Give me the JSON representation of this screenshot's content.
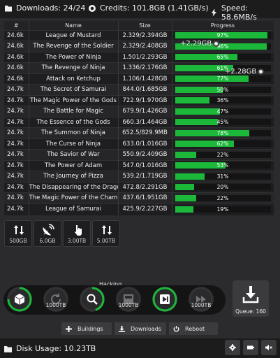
{
  "topbar": {
    "downloads": "Downloads: 24/24",
    "credits": "Credits: 101.8GB (1.41GB/s)",
    "speed": "Speed: 58.6MB/s"
  },
  "table": {
    "headers": [
      "#",
      "Name",
      "Size",
      "Progress"
    ],
    "rows": [
      {
        "id": "24.6k",
        "name": "League of Mustard",
        "size": "2.329/2.394GB",
        "progress": 97,
        "label": "97%"
      },
      {
        "id": "24.6k",
        "name": "The Revenge of the Soldier",
        "size": "2.329/2.408GB",
        "progress": 96,
        "label": "96%"
      },
      {
        "id": "24.6k",
        "name": "The Power of Ninja",
        "size": "1.501/2.293GB",
        "progress": 65,
        "label": "65%"
      },
      {
        "id": "24.6k",
        "name": "The Revenge of Ninja",
        "size": "1.336/2.176GB",
        "progress": 61,
        "label": "61%"
      },
      {
        "id": "24.6k",
        "name": "Attack on Ketchup",
        "size": "1.106/1.428GB",
        "progress": 77,
        "label": "77%"
      },
      {
        "id": "24.7k",
        "name": "The Secret of Samurai",
        "size": "844.0/1.685GB",
        "progress": 50,
        "label": "50%"
      },
      {
        "id": "24.7k",
        "name": "The Magic Power of the Gods",
        "size": "722.9/1.970GB",
        "progress": 36,
        "label": "36%"
      },
      {
        "id": "24.7k",
        "name": "The Battle for Magic",
        "size": "679.9/1.426GB",
        "progress": 47,
        "label": "47%"
      },
      {
        "id": "24.7k",
        "name": "The Essence of the Gods",
        "size": "660.3/1.464GB",
        "progress": 45,
        "label": "45%"
      },
      {
        "id": "24.7k",
        "name": "The Summon of Ninja",
        "size": "652.5/829.9MB",
        "progress": 78,
        "label": "78%"
      },
      {
        "id": "24.7k",
        "name": "The Curse of Ninja",
        "size": "633.0/1.016GB",
        "progress": 62,
        "label": "62%"
      },
      {
        "id": "24.7k",
        "name": "The Savior of War",
        "size": "550.9/2.409GB",
        "progress": 22,
        "label": "22%"
      },
      {
        "id": "24.7k",
        "name": "The Power of Adam",
        "size": "547.0/1.016GB",
        "progress": 53,
        "label": "53%"
      },
      {
        "id": "24.7k",
        "name": "The Journey of Pizza",
        "size": "539.2/1.719GB",
        "progress": 31,
        "label": "31%"
      },
      {
        "id": "24.7k",
        "name": "The Disappearing of the Dragon",
        "size": "472.8/2.291GB",
        "progress": 20,
        "label": "20%"
      },
      {
        "id": "24.7k",
        "name": "The Magic Power of the Champion",
        "size": "437.6/1.951GB",
        "progress": 22,
        "label": "22%"
      },
      {
        "id": "24.7k",
        "name": "League of Samurai",
        "size": "425.9/2.227GB",
        "progress": 19,
        "label": "19%"
      }
    ]
  },
  "gains": [
    "+2.29GB",
    "+2.28GB"
  ],
  "upgrades": [
    {
      "label": "500GB",
      "icon": "sort-arrows-icon"
    },
    {
      "label": "6.0GB",
      "icon": "satellite-dish-icon"
    },
    {
      "label": "3.00TB",
      "icon": "pointer-hand-icon"
    },
    {
      "label": "5.00TB",
      "icon": "sort-arrows-icon"
    }
  ],
  "hacking": {
    "title": "Hacking",
    "buttons": [
      {
        "icon": "cube-icon",
        "value": "",
        "progress": 0.75
      },
      {
        "icon": "refresh-icon",
        "value": "1000TB",
        "progress": 0
      },
      {
        "icon": "search-icon",
        "value": "",
        "progress": 0.45
      },
      {
        "icon": "server-icon",
        "value": "1000TB",
        "progress": 0
      },
      {
        "icon": "skip-forward-icon",
        "value": "",
        "progress": 1
      },
      {
        "icon": "fast-forward-icon",
        "value": "1000TB",
        "progress": 0
      }
    ]
  },
  "queue": {
    "label": "Queue: 160"
  },
  "actions": {
    "buildings": "Buildings",
    "downloads": "Downloads",
    "reboot": "Reboot"
  },
  "footer": {
    "disk": "Disk Usage: 10.23TB"
  },
  "colors": {
    "accent_green": "#1bb83a",
    "background": "#2b2b2d",
    "bar_background": "#1c1c1d"
  }
}
